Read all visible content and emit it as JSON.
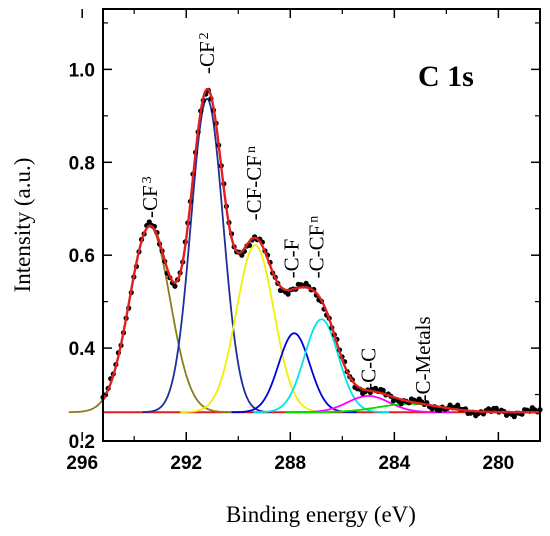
{
  "chart_data": {
    "type": "line",
    "title": "",
    "xlabel": "Binding energy (eV)",
    "ylabel": "Intensity (a.u.)",
    "xlim": [
      295.2,
      278.4
    ],
    "ylim": [
      0.2,
      1.13
    ],
    "x_reversed": true,
    "x_ticks": [
      296,
      292,
      288,
      284,
      280
    ],
    "x_tick_labels": [
      "296",
      "292",
      "288",
      "284",
      "280"
    ],
    "y_ticks": [
      0.2,
      0.4,
      0.6,
      0.8,
      1.0
    ],
    "y_tick_labels": [
      "0.2",
      "0.4",
      "0.6",
      "0.8",
      "1.0"
    ],
    "grid": false,
    "inset_label": "C 1s",
    "background": 0.262,
    "components": [
      {
        "center": 293.4,
        "amplitude": 0.4,
        "sigma": 0.78,
        "color": "#8b7d1a"
      },
      {
        "center": 291.2,
        "amplitude": 0.675,
        "sigma": 0.62,
        "color": "#1f2f9a"
      },
      {
        "center": 289.35,
        "amplitude": 0.36,
        "sigma": 0.72,
        "color": "#f0f000"
      },
      {
        "center": 287.85,
        "amplitude": 0.17,
        "sigma": 0.6,
        "color": "#0000e0"
      },
      {
        "center": 286.8,
        "amplitude": 0.2,
        "sigma": 0.65,
        "color": "#00e5e5"
      },
      {
        "center": 285.0,
        "amplitude": 0.035,
        "sigma": 0.8,
        "color": "#ff00ff"
      },
      {
        "center": 283.4,
        "amplitude": 0.018,
        "sigma": 1.2,
        "color": "#00dd00"
      }
    ],
    "envelope_color": "#e02020",
    "data_color": "#000000",
    "annotations": [
      {
        "text": "-CF",
        "sub": "3",
        "x": 293.4,
        "y": 0.68
      },
      {
        "text": "-CF",
        "sub": "2",
        "x": 291.2,
        "y": 0.99
      },
      {
        "text": "-CF-CF",
        "sub": "n",
        "x": 289.4,
        "y": 0.675
      },
      {
        "text": "-C-F",
        "sub": "",
        "x": 287.95,
        "y": 0.55
      },
      {
        "text": "-C-CF",
        "sub": "n",
        "x": 287.0,
        "y": 0.55
      },
      {
        "text": "-C-C",
        "sub": "",
        "x": 285.0,
        "y": 0.31
      },
      {
        "text": "-C-Metals",
        "sub": "",
        "x": 282.9,
        "y": 0.285
      }
    ]
  }
}
